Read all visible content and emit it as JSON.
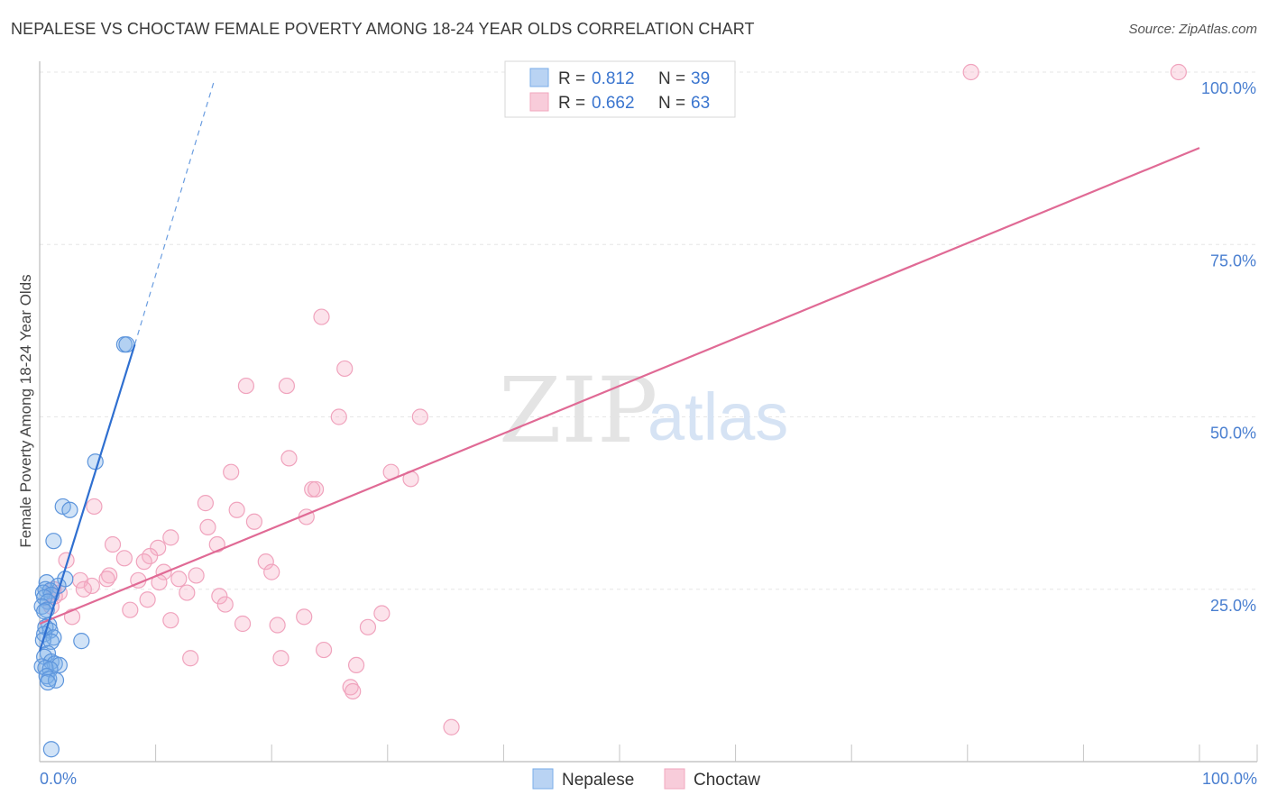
{
  "title": "NEPALESE VS CHOCTAW FEMALE POVERTY AMONG 18-24 YEAR OLDS CORRELATION CHART",
  "source": "Source: ZipAtlas.com",
  "watermark": {
    "part1": "ZIP",
    "part2": "atlas"
  },
  "colors": {
    "blue": "#7aaee8",
    "blue_line": "#2f6fd0",
    "pink": "#f2a7bf",
    "pink_line": "#e06a95",
    "tick": "#4a7fd0"
  },
  "chart_data": {
    "type": "scatter",
    "title": "NEPALESE VS CHOCTAW FEMALE POVERTY AMONG 18-24 YEAR OLDS CORRELATION CHART",
    "xlabel": "",
    "ylabel": "Female Poverty Among 18-24 Year Olds",
    "xlim": [
      0,
      100
    ],
    "ylim": [
      0,
      100
    ],
    "x_tick_labels": [
      "0.0%",
      "100.0%"
    ],
    "y_tick_labels": [
      {
        "value": 25,
        "label": "25.0%"
      },
      {
        "value": 50,
        "label": "50.0%"
      },
      {
        "value": 75,
        "label": "75.0%"
      },
      {
        "value": 100,
        "label": "100.0%"
      }
    ],
    "legend": {
      "rows": [
        {
          "r_label": "R =",
          "r_value": "0.812",
          "n_label": "N =",
          "n_value": "39"
        },
        {
          "r_label": "R =",
          "r_value": "0.662",
          "n_label": "N =",
          "n_value": "63"
        }
      ]
    },
    "series": [
      {
        "name": "Nepalese",
        "r": 0.812,
        "n": 39,
        "trend": {
          "x0": 0,
          "y0": 16,
          "x1": 8.2,
          "y1": 60.5,
          "dash_x1": 15,
          "dash_y1": 98.5
        },
        "points": [
          [
            7.3,
            60.5
          ],
          [
            7.5,
            60.5
          ],
          [
            4.8,
            43.5
          ],
          [
            2.0,
            37.0
          ],
          [
            2.6,
            36.5
          ],
          [
            1.2,
            32.0
          ],
          [
            2.2,
            26.5
          ],
          [
            0.6,
            26.0
          ],
          [
            1.6,
            25.5
          ],
          [
            0.5,
            25.0
          ],
          [
            0.9,
            24.8
          ],
          [
            0.3,
            24.5
          ],
          [
            1.0,
            24.2
          ],
          [
            0.4,
            23.8
          ],
          [
            0.7,
            23.2
          ],
          [
            0.2,
            22.5
          ],
          [
            0.6,
            22.0
          ],
          [
            0.4,
            21.8
          ],
          [
            0.8,
            19.8
          ],
          [
            0.5,
            19.5
          ],
          [
            0.9,
            19.0
          ],
          [
            0.4,
            18.5
          ],
          [
            1.2,
            18.0
          ],
          [
            0.3,
            17.6
          ],
          [
            3.6,
            17.5
          ],
          [
            1.0,
            17.4
          ],
          [
            0.7,
            15.7
          ],
          [
            0.4,
            15.2
          ],
          [
            1.0,
            14.5
          ],
          [
            1.3,
            14.2
          ],
          [
            1.7,
            14.0
          ],
          [
            0.2,
            13.8
          ],
          [
            0.5,
            13.6
          ],
          [
            0.9,
            13.4
          ],
          [
            0.6,
            12.4
          ],
          [
            0.8,
            12.0
          ],
          [
            1.4,
            11.8
          ],
          [
            0.7,
            11.5
          ],
          [
            1.0,
            1.8
          ]
        ]
      },
      {
        "name": "Choctaw",
        "r": 0.662,
        "n": 63,
        "trend": {
          "x0": 0,
          "y0": 20,
          "x1": 100,
          "y1": 89
        },
        "points": [
          [
            80.3,
            100
          ],
          [
            98.2,
            100
          ],
          [
            24.3,
            64.5
          ],
          [
            26.3,
            57.0
          ],
          [
            17.8,
            54.5
          ],
          [
            21.3,
            54.5
          ],
          [
            25.8,
            50.0
          ],
          [
            32.8,
            50.0
          ],
          [
            16.5,
            42.0
          ],
          [
            21.5,
            44.0
          ],
          [
            30.3,
            42.0
          ],
          [
            32.0,
            41.0
          ],
          [
            23.5,
            39.5
          ],
          [
            23.8,
            39.5
          ],
          [
            14.3,
            37.5
          ],
          [
            4.7,
            37.0
          ],
          [
            17.0,
            36.5
          ],
          [
            18.5,
            34.8
          ],
          [
            23.0,
            35.5
          ],
          [
            14.5,
            34.0
          ],
          [
            11.3,
            32.5
          ],
          [
            6.3,
            31.5
          ],
          [
            15.3,
            31.5
          ],
          [
            10.2,
            31.0
          ],
          [
            9.5,
            29.8
          ],
          [
            7.3,
            29.5
          ],
          [
            2.3,
            29.2
          ],
          [
            9.0,
            29.0
          ],
          [
            19.5,
            29.0
          ],
          [
            20.0,
            27.5
          ],
          [
            10.7,
            27.5
          ],
          [
            6.0,
            27.0
          ],
          [
            5.8,
            26.5
          ],
          [
            3.5,
            26.3
          ],
          [
            8.5,
            26.3
          ],
          [
            10.3,
            26.0
          ],
          [
            12.0,
            26.5
          ],
          [
            13.5,
            27.0
          ],
          [
            4.5,
            25.5
          ],
          [
            3.8,
            25.0
          ],
          [
            1.7,
            24.5
          ],
          [
            1.3,
            24.0
          ],
          [
            12.7,
            24.5
          ],
          [
            15.5,
            24.0
          ],
          [
            9.3,
            23.5
          ],
          [
            16.0,
            22.8
          ],
          [
            1.0,
            22.5
          ],
          [
            7.8,
            22.0
          ],
          [
            29.5,
            21.5
          ],
          [
            22.8,
            21.0
          ],
          [
            11.3,
            20.5
          ],
          [
            2.8,
            21.0
          ],
          [
            17.5,
            20.0
          ],
          [
            20.5,
            19.8
          ],
          [
            28.3,
            19.5
          ],
          [
            24.5,
            16.2
          ],
          [
            13.0,
            15.0
          ],
          [
            20.8,
            15.0
          ],
          [
            27.3,
            14.0
          ],
          [
            26.8,
            10.8
          ],
          [
            27.0,
            10.2
          ],
          [
            1.2,
            25.0
          ],
          [
            35.5,
            5.0
          ]
        ]
      }
    ]
  },
  "bottom_legend": [
    "Nepalese",
    "Choctaw"
  ]
}
